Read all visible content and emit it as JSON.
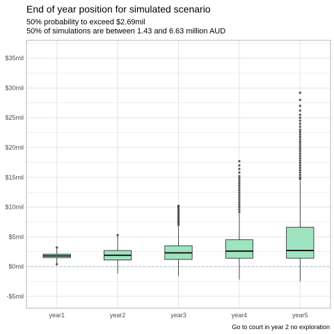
{
  "chart_data": {
    "type": "boxplot",
    "title": "End of year position for simulated scenario",
    "subtitle_lines": [
      "50% probability to exceed $2.69mil",
      "50% of simulations are between 1.43 and 6.63 million AUD"
    ],
    "caption": "Go to court in year 2 no exploration",
    "xlabel": "",
    "ylabel": "",
    "ylim": [
      -7,
      38
    ],
    "y_ticks": [
      -5,
      0,
      5,
      10,
      15,
      20,
      25,
      30,
      35
    ],
    "y_tick_labels": [
      "-$5mil",
      "$0mil",
      "$5mil",
      "$10mil",
      "$15mil",
      "$20mil",
      "$25mil",
      "$30mil",
      "$35mil"
    ],
    "grid": true,
    "reference_line": {
      "y": 0,
      "style": "dashed"
    },
    "categories": [
      "year1",
      "year2",
      "year3",
      "year4",
      "year5"
    ],
    "boxes": [
      {
        "category": "year1",
        "q1": 1.5,
        "median": 1.8,
        "q3": 2.1,
        "whisker_low": 0.6,
        "whisker_high": 3.0,
        "outliers": [
          3.2,
          0.4
        ]
      },
      {
        "category": "year2",
        "q1": 1.1,
        "median": 1.9,
        "q3": 2.7,
        "whisker_low": -1.2,
        "whisker_high": 5.2,
        "outliers": [
          5.3
        ]
      },
      {
        "category": "year3",
        "q1": 1.2,
        "median": 2.3,
        "q3": 3.5,
        "whisker_low": -1.6,
        "whisker_high": 6.8,
        "outliers": [
          7.0,
          7.3,
          7.6,
          7.9,
          8.2,
          8.5,
          8.8,
          9.1,
          9.4,
          9.7,
          10.0,
          10.2
        ]
      },
      {
        "category": "year4",
        "q1": 1.4,
        "median": 2.6,
        "q3": 4.5,
        "whisker_low": -2.2,
        "whisker_high": 9.0,
        "outliers": [
          9.2,
          9.6,
          10.0,
          10.4,
          10.8,
          11.2,
          11.6,
          12.0,
          12.4,
          12.8,
          13.2,
          13.6,
          14.0,
          14.4,
          14.8,
          15.2,
          15.8,
          16.4,
          17.0,
          17.7
        ]
      },
      {
        "category": "year5",
        "q1": 1.4,
        "median": 2.7,
        "q3": 6.6,
        "whisker_low": -2.5,
        "whisker_high": 14.4,
        "outliers": [
          14.7,
          15.0,
          15.4,
          15.8,
          16.2,
          16.6,
          17.0,
          17.4,
          17.8,
          18.2,
          18.6,
          19.0,
          19.4,
          19.8,
          20.2,
          20.6,
          21.0,
          21.4,
          21.8,
          22.2,
          22.6,
          23.0,
          23.5,
          24.0,
          24.5,
          25.0,
          25.5,
          26.2,
          27.0,
          28.0,
          29.2
        ]
      }
    ],
    "colors": {
      "box_fill": "#9fe3bf",
      "box_stroke": "#1a1a1a",
      "median": "#1a1a1a",
      "outlier": "#333333",
      "grid": "#e3e3e3",
      "panel_border": "#b3b3b3",
      "zero_line": "#a9b8d6"
    }
  }
}
